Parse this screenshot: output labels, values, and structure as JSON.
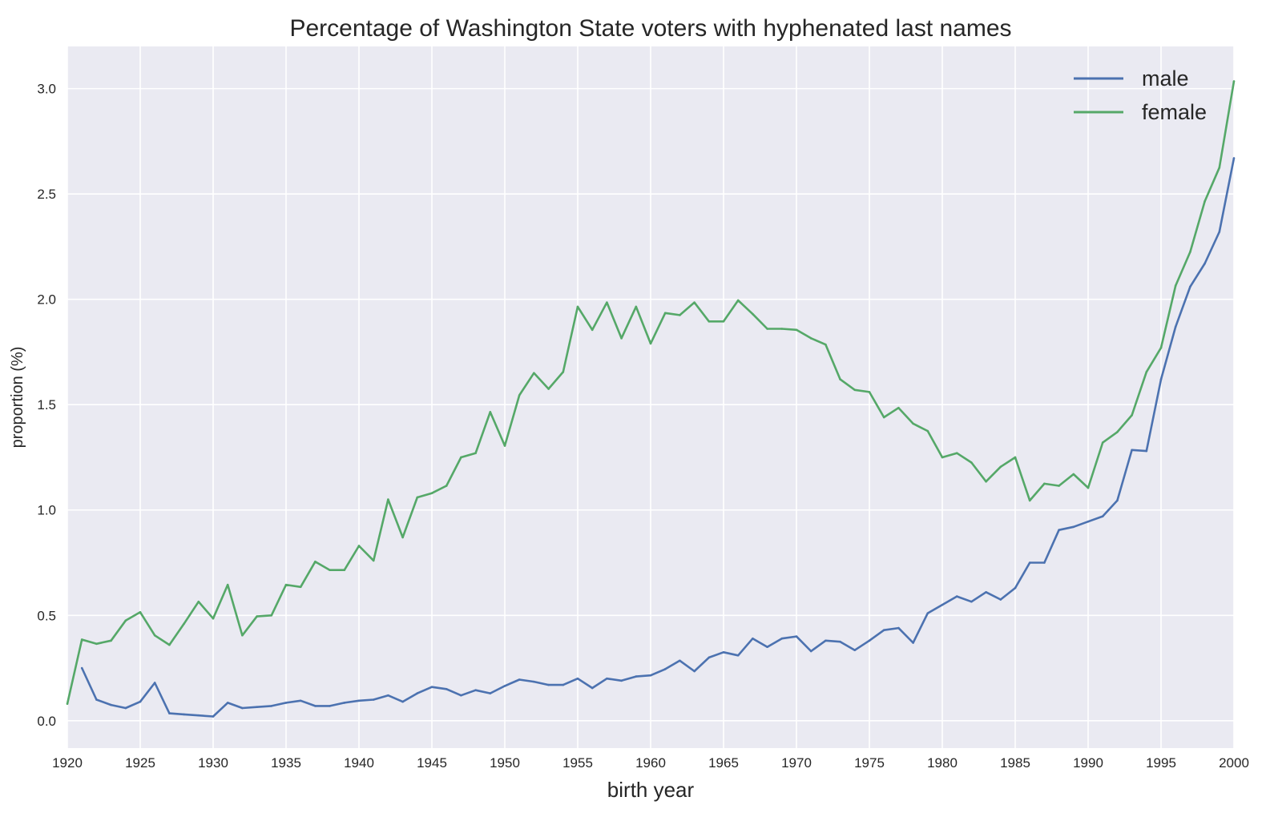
{
  "chart_data": {
    "type": "line",
    "title": "Percentage of Washington State voters with hyphenated last names",
    "xlabel": "birth year",
    "ylabel": "proportion (%)",
    "xlim": [
      1920,
      2000
    ],
    "ylim": [
      -0.13,
      3.2
    ],
    "xticks": [
      1920,
      1925,
      1930,
      1935,
      1940,
      1945,
      1950,
      1955,
      1960,
      1965,
      1970,
      1975,
      1980,
      1985,
      1990,
      1995,
      2000
    ],
    "xtick_labels": [
      "1920",
      "1925",
      "1930",
      "1935",
      "1940",
      "1945",
      "1950",
      "1955",
      "1960",
      "1965",
      "1970",
      "1975",
      "1980",
      "1985",
      "1990",
      "1995",
      "2000"
    ],
    "yticks": [
      0.0,
      0.5,
      1.0,
      1.5,
      2.0,
      2.5,
      3.0
    ],
    "ytick_labels": [
      "0.0",
      "0.5",
      "1.0",
      "1.5",
      "2.0",
      "2.5",
      "3.0"
    ],
    "grid": true,
    "legend_position": "top-right",
    "background_color": "#eaeaf2",
    "grid_color": "#ffffff",
    "series": [
      {
        "name": "male",
        "color": "#4c72b0",
        "x": [
          1921,
          1922,
          1923,
          1924,
          1925,
          1926,
          1927,
          1928,
          1929,
          1930,
          1931,
          1932,
          1933,
          1934,
          1935,
          1936,
          1937,
          1938,
          1939,
          1940,
          1941,
          1942,
          1943,
          1944,
          1945,
          1946,
          1947,
          1948,
          1949,
          1950,
          1951,
          1952,
          1953,
          1954,
          1955,
          1956,
          1957,
          1958,
          1959,
          1960,
          1961,
          1962,
          1963,
          1964,
          1965,
          1966,
          1967,
          1968,
          1969,
          1970,
          1971,
          1972,
          1973,
          1974,
          1975,
          1976,
          1977,
          1978,
          1979,
          1980,
          1981,
          1982,
          1983,
          1984,
          1985,
          1986,
          1987,
          1988,
          1989,
          1990,
          1991,
          1992,
          1993,
          1994,
          1995,
          1996,
          1997,
          1998,
          1999,
          2000
        ],
        "y": [
          0.25,
          0.1,
          0.075,
          0.06,
          0.09,
          0.18,
          0.035,
          0.03,
          0.025,
          0.02,
          0.085,
          0.06,
          0.065,
          0.07,
          0.085,
          0.095,
          0.07,
          0.07,
          0.085,
          0.095,
          0.1,
          0.12,
          0.09,
          0.13,
          0.16,
          0.15,
          0.12,
          0.145,
          0.13,
          0.165,
          0.195,
          0.185,
          0.17,
          0.17,
          0.2,
          0.155,
          0.2,
          0.19,
          0.21,
          0.215,
          0.245,
          0.285,
          0.235,
          0.3,
          0.325,
          0.31,
          0.39,
          0.35,
          0.39,
          0.4,
          0.33,
          0.38,
          0.375,
          0.335,
          0.38,
          0.43,
          0.44,
          0.37,
          0.51,
          0.55,
          0.59,
          0.565,
          0.61,
          0.575,
          0.63,
          0.75,
          0.75,
          0.905,
          0.92,
          0.945,
          0.97,
          1.045,
          1.285,
          1.28,
          1.62,
          1.87,
          2.06,
          2.17,
          2.32,
          2.67
        ]
      },
      {
        "name": "female",
        "color": "#55a868",
        "x": [
          1920,
          1921,
          1922,
          1923,
          1924,
          1925,
          1926,
          1927,
          1928,
          1929,
          1930,
          1931,
          1932,
          1933,
          1934,
          1935,
          1936,
          1937,
          1938,
          1939,
          1940,
          1941,
          1942,
          1943,
          1944,
          1945,
          1946,
          1947,
          1948,
          1949,
          1950,
          1951,
          1952,
          1953,
          1954,
          1955,
          1956,
          1957,
          1958,
          1959,
          1960,
          1961,
          1962,
          1963,
          1964,
          1965,
          1966,
          1967,
          1968,
          1969,
          1970,
          1971,
          1972,
          1973,
          1974,
          1975,
          1976,
          1977,
          1978,
          1979,
          1980,
          1981,
          1982,
          1983,
          1984,
          1985,
          1986,
          1987,
          1988,
          1989,
          1990,
          1991,
          1992,
          1993,
          1994,
          1995,
          1996,
          1997,
          1998,
          1999,
          2000
        ],
        "y": [
          0.08,
          0.385,
          0.365,
          0.38,
          0.475,
          0.515,
          0.405,
          0.36,
          0.46,
          0.565,
          0.485,
          0.645,
          0.405,
          0.495,
          0.5,
          0.645,
          0.635,
          0.755,
          0.715,
          0.715,
          0.83,
          0.76,
          1.05,
          0.87,
          1.06,
          1.08,
          1.115,
          1.25,
          1.27,
          1.465,
          1.305,
          1.545,
          1.65,
          1.575,
          1.655,
          1.965,
          1.855,
          1.985,
          1.815,
          1.965,
          1.79,
          1.935,
          1.925,
          1.985,
          1.895,
          1.895,
          1.995,
          1.93,
          1.86,
          1.86,
          1.855,
          1.815,
          1.785,
          1.62,
          1.57,
          1.56,
          1.44,
          1.485,
          1.41,
          1.375,
          1.25,
          1.27,
          1.225,
          1.135,
          1.205,
          1.25,
          1.045,
          1.125,
          1.115,
          1.17,
          1.105,
          1.32,
          1.37,
          1.45,
          1.655,
          1.77,
          2.065,
          2.225,
          2.465,
          2.625,
          3.035
        ]
      }
    ]
  }
}
